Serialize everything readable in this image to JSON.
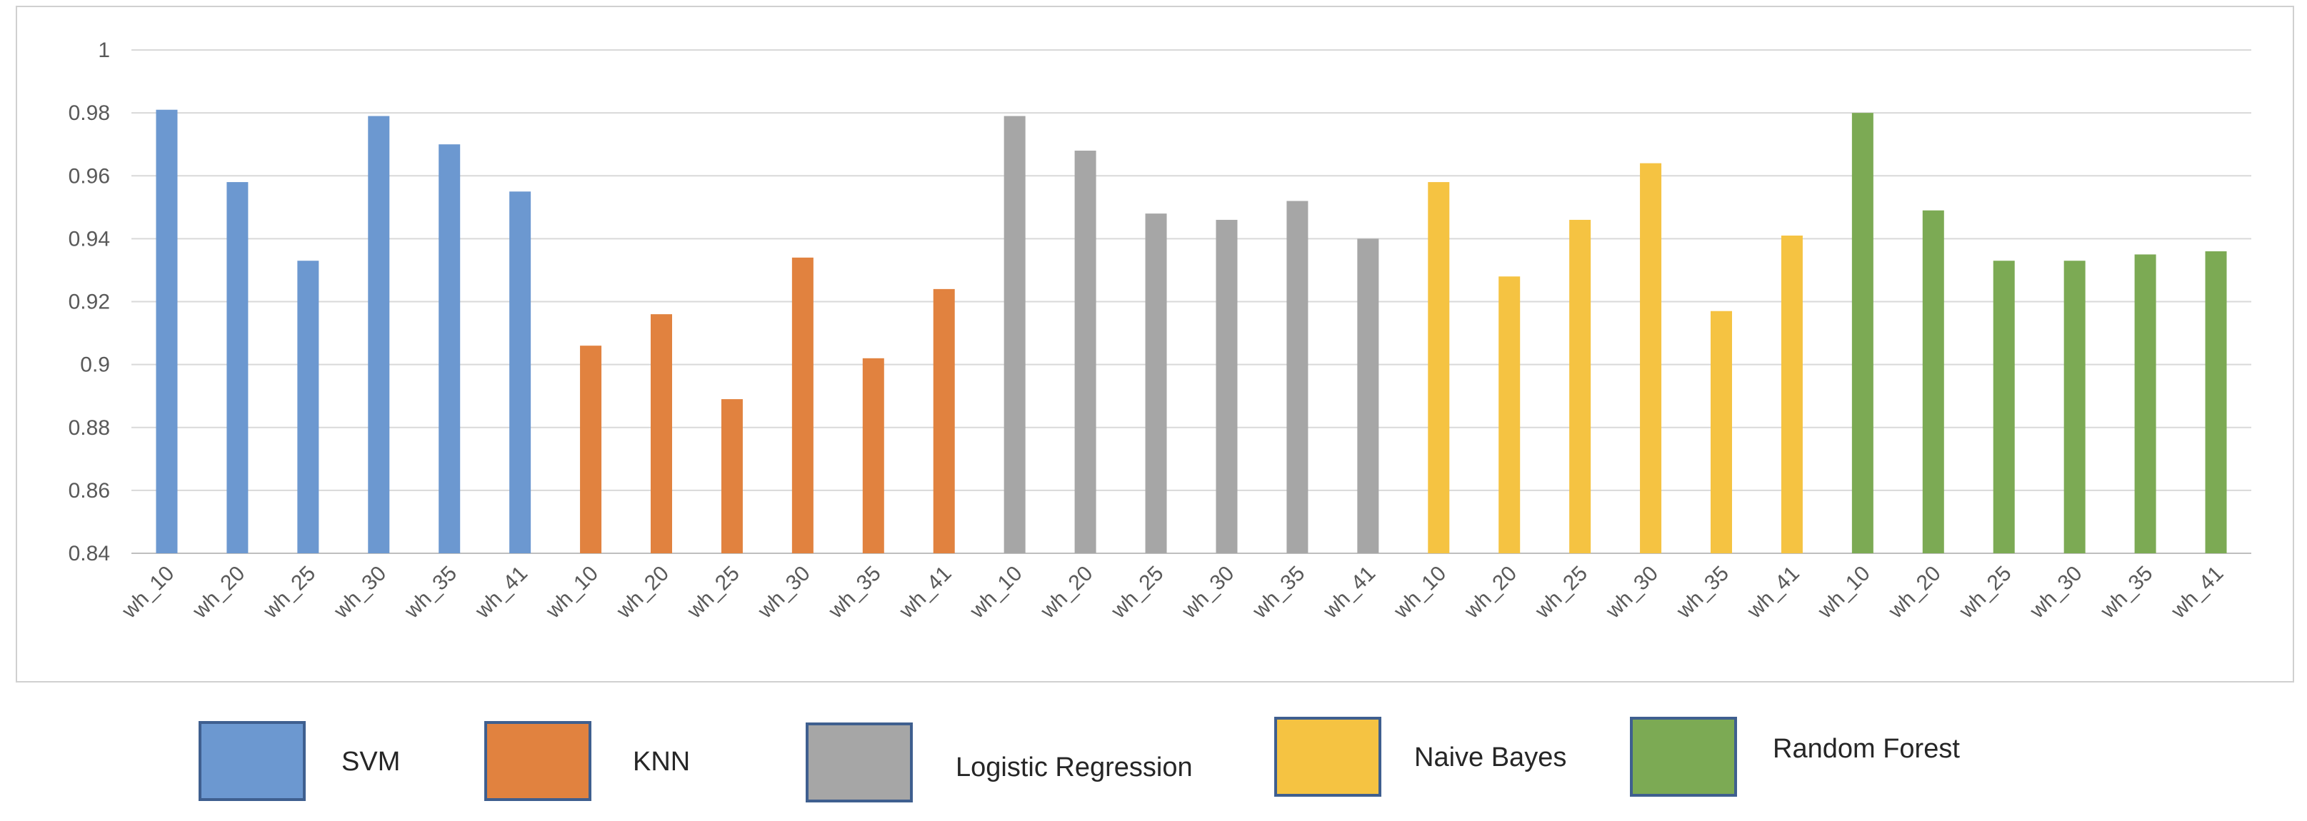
{
  "chart_data": {
    "type": "bar",
    "title": "",
    "xlabel": "",
    "ylabel": "",
    "ylim": [
      0.84,
      1.0
    ],
    "yticks": [
      0.84,
      0.86,
      0.88,
      0.9,
      0.92,
      0.94,
      0.96,
      0.98,
      1
    ],
    "ytick_labels": [
      "0.84",
      "0.86",
      "0.88",
      "0.9",
      "0.92",
      "0.94",
      "0.96",
      "0.98",
      "1"
    ],
    "grid": true,
    "legend_position": "bottom",
    "groups": [
      {
        "name": "SVM",
        "color": "#6c98d0",
        "categories": [
          "wh_10",
          "wh_20",
          "wh_25",
          "wh_30",
          "wh_35",
          "wh_41"
        ],
        "values": [
          0.981,
          0.958,
          0.933,
          0.979,
          0.97,
          0.955
        ]
      },
      {
        "name": "KNN",
        "color": "#e1823f",
        "categories": [
          "wh_10",
          "wh_20",
          "wh_25",
          "wh_30",
          "wh_35",
          "wh_41"
        ],
        "values": [
          0.906,
          0.916,
          0.889,
          0.934,
          0.902,
          0.924
        ]
      },
      {
        "name": "Logistic Regression",
        "color": "#a6a6a6",
        "categories": [
          "wh_10",
          "wh_20",
          "wh_25",
          "wh_30",
          "wh_35",
          "wh_41"
        ],
        "values": [
          0.979,
          0.968,
          0.948,
          0.946,
          0.952,
          0.94
        ]
      },
      {
        "name": "Naive Bayes",
        "color": "#f5c342",
        "categories": [
          "wh_10",
          "wh_20",
          "wh_25",
          "wh_30",
          "wh_35",
          "wh_41"
        ],
        "values": [
          0.958,
          0.928,
          0.946,
          0.964,
          0.917,
          0.941
        ]
      },
      {
        "name": "Random Forest",
        "color": "#7caa54",
        "categories": [
          "wh_10",
          "wh_20",
          "wh_25",
          "wh_30",
          "wh_35",
          "wh_41"
        ],
        "values": [
          0.98,
          0.949,
          0.933,
          0.933,
          0.935,
          0.936
        ]
      }
    ]
  },
  "legend": {
    "items": [
      {
        "label": "SVM",
        "color": "#6c98d0"
      },
      {
        "label": "KNN",
        "color": "#e1823f"
      },
      {
        "label": "Logistic Regression",
        "color": "#a6a6a6"
      },
      {
        "label": "Naive Bayes",
        "color": "#f5c342"
      },
      {
        "label": "Random Forest",
        "color": "#7caa54"
      }
    ]
  }
}
